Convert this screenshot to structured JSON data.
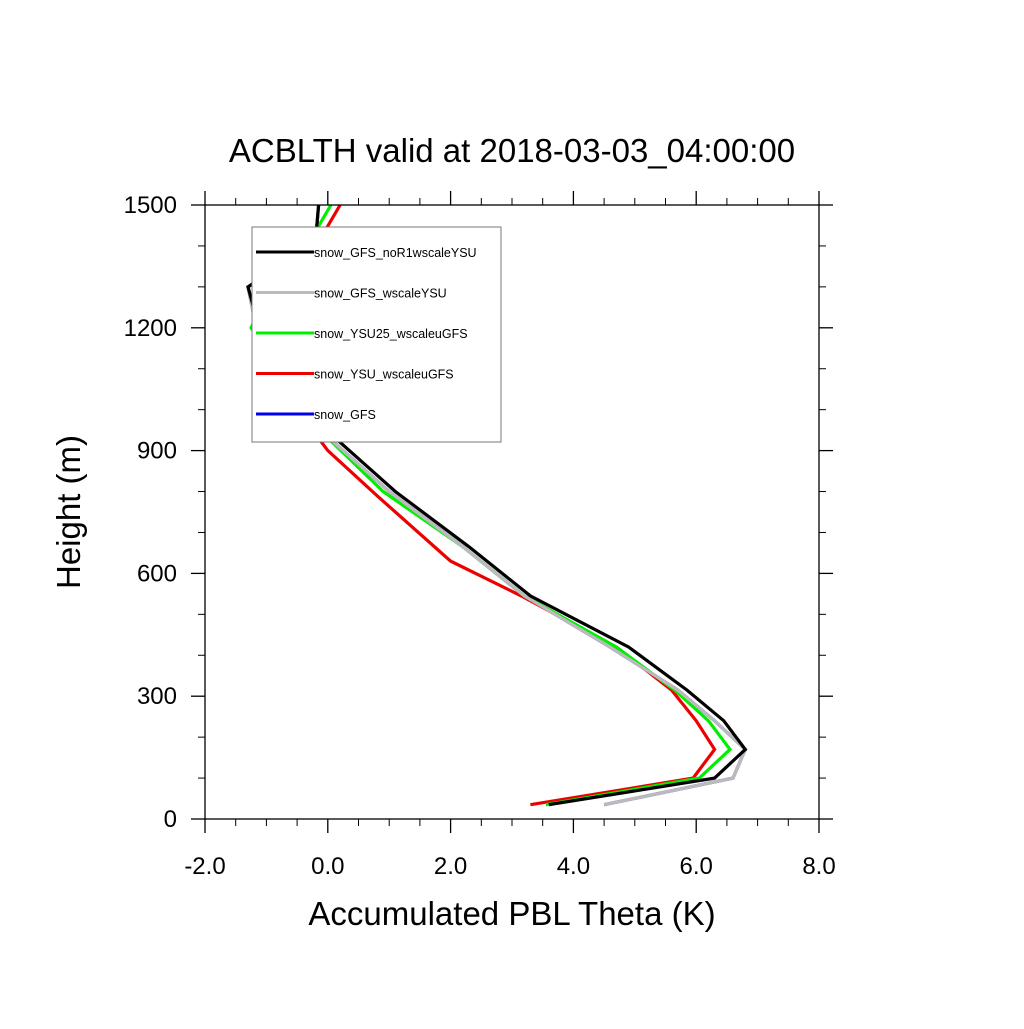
{
  "chart_data": {
    "type": "line",
    "title": "ACBLTH valid at 2018-03-03_04:00:00",
    "xlabel": "Accumulated PBL Theta (K)",
    "ylabel": "Height (m)",
    "xlim": [
      -2.0,
      8.0
    ],
    "ylim": [
      0,
      1500
    ],
    "xticks": [
      -2.0,
      0.0,
      2.0,
      4.0,
      6.0,
      8.0
    ],
    "xtick_labels": [
      "-2.0",
      "0.0",
      "2.0",
      "4.0",
      "6.0",
      "8.0"
    ],
    "yticks": [
      0,
      300,
      600,
      900,
      1200,
      1500
    ],
    "ytick_labels": [
      "0",
      "300",
      "600",
      "900",
      "1200",
      "1500"
    ],
    "grid": false,
    "legend_position": "top-left",
    "series": [
      {
        "name": "snow_GFS_noR1wscaleYSU",
        "color": "#000000",
        "x": [
          3.6,
          6.3,
          6.8,
          6.45,
          5.85,
          4.9,
          3.3,
          2.3,
          1.1,
          -0.1,
          -0.55,
          -1.1,
          -1.3,
          -0.2,
          -0.15
        ],
        "y": [
          35,
          100,
          170,
          240,
          315,
          420,
          545,
          665,
          800,
          960,
          1070,
          1190,
          1300,
          1410,
          1500
        ]
      },
      {
        "name": "snow_GFS_wscaleYSU",
        "color": "#bbbbbb",
        "x": [
          4.5,
          6.6,
          6.8,
          6.3,
          5.7,
          4.6,
          3.2,
          2.2,
          1.0,
          -0.2,
          -0.6,
          -1.15,
          -1.3,
          -0.2,
          -0.15
        ],
        "y": [
          35,
          100,
          170,
          240,
          315,
          420,
          545,
          665,
          800,
          960,
          1070,
          1190,
          1300,
          1410,
          1500
        ]
      },
      {
        "name": "snow_YSU25_wscaleuGFS",
        "color": "#00ee00",
        "x": [
          3.55,
          6.05,
          6.55,
          6.2,
          5.65,
          4.7,
          3.2,
          2.2,
          0.9,
          -0.2,
          -0.7,
          -1.25,
          -0.95,
          -0.3,
          0.05
        ],
        "y": [
          35,
          100,
          170,
          240,
          315,
          420,
          545,
          665,
          800,
          960,
          1080,
          1200,
          1300,
          1410,
          1500
        ]
      },
      {
        "name": "snow_YSU_wscaleuGFS",
        "color": "#ee0000",
        "x": [
          3.3,
          5.95,
          6.3,
          6.0,
          5.6,
          4.7,
          3.15,
          2.0,
          0.8,
          0.0,
          -0.5,
          -0.8,
          -0.5,
          -0.15,
          0.2
        ],
        "y": [
          35,
          100,
          170,
          240,
          315,
          420,
          545,
          630,
          790,
          900,
          1000,
          1100,
          1250,
          1410,
          1500
        ]
      },
      {
        "name": "snow_GFS",
        "color": "#0000ee",
        "x": [
          4.5,
          6.6,
          6.8,
          6.3,
          5.7,
          4.6,
          3.2,
          2.2,
          1.0,
          -0.2,
          -0.6,
          -1.15,
          -1.3,
          -0.2,
          -0.15
        ],
        "y": [
          35,
          100,
          170,
          240,
          315,
          420,
          545,
          665,
          800,
          960,
          1070,
          1190,
          1300,
          1410,
          1500
        ]
      }
    ]
  }
}
